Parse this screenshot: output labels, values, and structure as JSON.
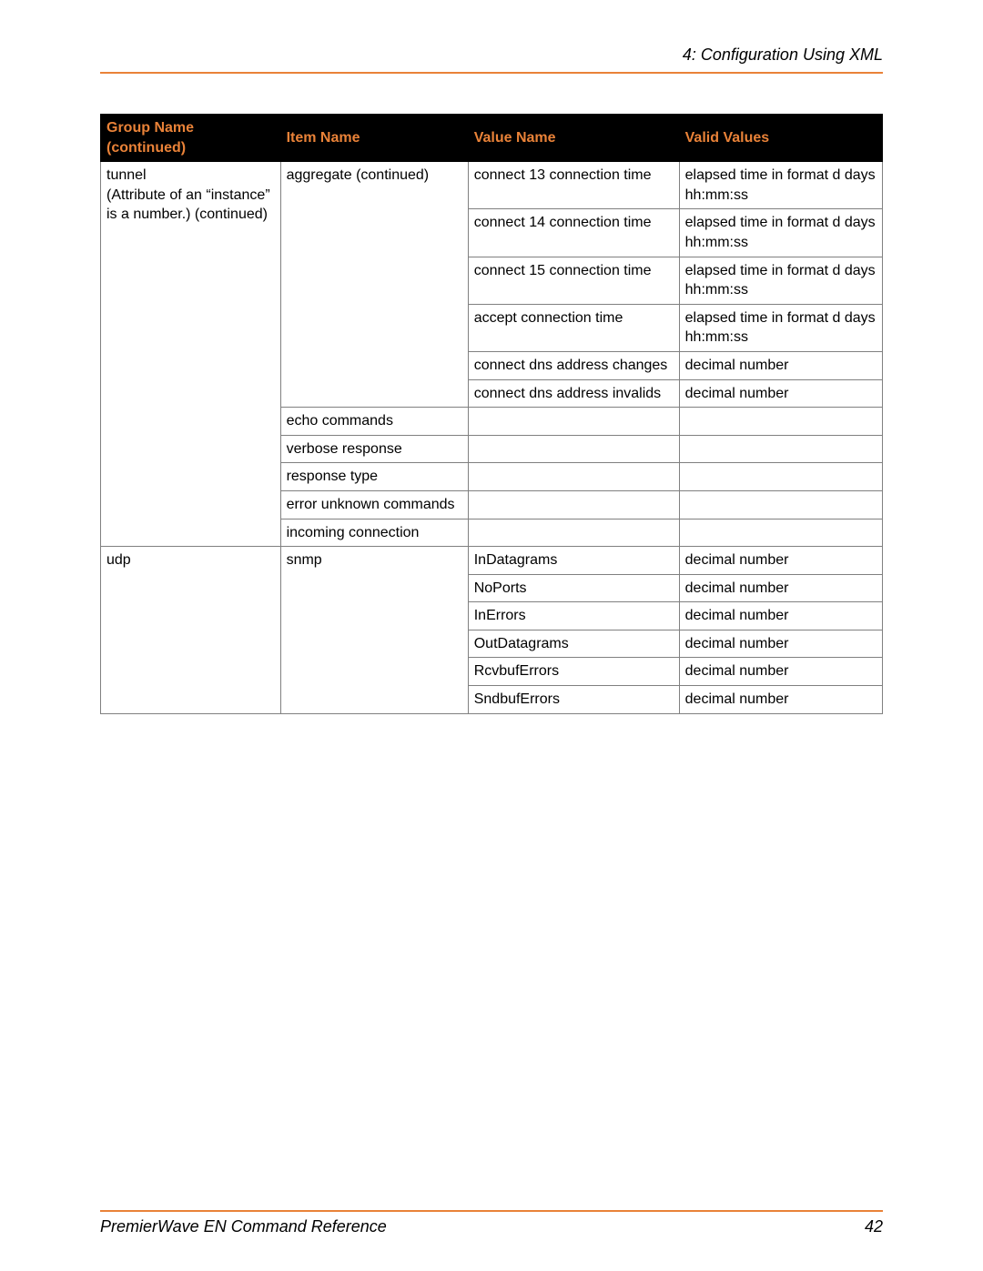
{
  "header_title": "4: Configuration Using XML",
  "footer_title": "PremierWave EN Command Reference",
  "page_number": "42",
  "accent_color": "#e98238",
  "table": {
    "columns": [
      "Group Name (continued)",
      "Item Name",
      "Value Name",
      "Valid Values"
    ],
    "group1_name_line1": "tunnel",
    "group1_name_line2": "(Attribute of an “instance” is a number.) (continued)",
    "item_aggregate": "aggregate (continued)",
    "agg_rows": [
      {
        "value": "connect 13 connection time",
        "valid": "elapsed time in format d days hh:mm:ss"
      },
      {
        "value": "connect 14 connection time",
        "valid": "elapsed time in format d days hh:mm:ss"
      },
      {
        "value": "connect 15 connection time",
        "valid": "elapsed time in format d days hh:mm:ss"
      },
      {
        "value": "accept connection time",
        "valid": "elapsed time in format d days hh:mm:ss"
      },
      {
        "value": "connect dns address changes",
        "valid": "decimal number"
      },
      {
        "value": "connect dns address invalids",
        "valid": "decimal number"
      }
    ],
    "tunnel_items": [
      "echo commands",
      "verbose response",
      "response type",
      "error unknown commands",
      "incoming connection"
    ],
    "group2_name": "udp",
    "item_snmp": "snmp",
    "snmp_rows": [
      {
        "value": "InDatagrams",
        "valid": "decimal number"
      },
      {
        "value": "NoPorts",
        "valid": "decimal number"
      },
      {
        "value": "InErrors",
        "valid": "decimal number"
      },
      {
        "value": "OutDatagrams",
        "valid": "decimal number"
      },
      {
        "value": "RcvbufErrors",
        "valid": "decimal number"
      },
      {
        "value": "SndbufErrors",
        "valid": "decimal number"
      }
    ]
  }
}
